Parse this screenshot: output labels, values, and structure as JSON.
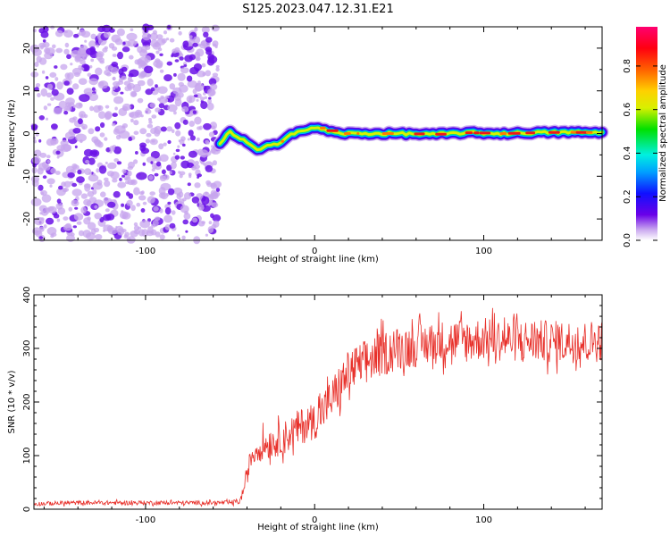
{
  "figure": {
    "title": "S125.2023.047.12.31.E21"
  },
  "chart_data": [
    {
      "type": "heatmap",
      "xlabel": "Height of straight line (km)",
      "ylabel": "Frequency (Hz)",
      "xlim": [
        -166,
        170
      ],
      "ylim": [
        -25,
        25
      ],
      "x_ticks": [
        -100,
        0,
        100
      ],
      "y_ticks": [
        -20,
        -10,
        0,
        10,
        20
      ],
      "noise_region_x": [
        -166,
        -57
      ],
      "signal_track": {
        "x": [
          -56,
          -50,
          -45,
          -40,
          -34,
          -28,
          -22,
          -16,
          -10,
          -4,
          2,
          8,
          16,
          30,
          50,
          70,
          90,
          110,
          130,
          150,
          170
        ],
        "y": [
          -2.5,
          0.5,
          -1.0,
          -2.0,
          -4.0,
          -3.0,
          -2.5,
          -0.5,
          0.5,
          0.8,
          1.5,
          0.5,
          0.0,
          0.0,
          0.0,
          -0.2,
          0.2,
          0.0,
          0.2,
          0.3,
          0.2
        ]
      },
      "colorbar": {
        "label": "Normalized spectral amplitude",
        "ticks": [
          0.0,
          0.2,
          0.4,
          0.6,
          0.8
        ],
        "range": [
          0,
          0.98
        ]
      },
      "grid": false
    },
    {
      "type": "line",
      "xlabel": "Height of straight line (km)",
      "ylabel": "SNR (10 * v/v)",
      "xlim": [
        -166,
        170
      ],
      "ylim": [
        0,
        400
      ],
      "x_ticks": [
        -100,
        0,
        100
      ],
      "y_ticks": [
        0,
        100,
        200,
        300,
        400
      ],
      "series": [
        {
          "color": "#e8302a",
          "x": [
            -166,
            -140,
            -110,
            -80,
            -60,
            -50,
            -44,
            -40,
            -38,
            -35,
            -30,
            -25,
            -20,
            -15,
            -10,
            -5,
            0,
            5,
            10,
            15,
            20,
            30,
            40,
            50,
            60,
            70,
            80,
            90,
            100,
            110,
            120,
            130,
            140,
            150,
            160,
            170
          ],
          "y": [
            10,
            12,
            12,
            12,
            12,
            12,
            15,
            60,
            95,
            110,
            120,
            125,
            130,
            140,
            150,
            160,
            165,
            185,
            205,
            230,
            255,
            275,
            290,
            300,
            305,
            310,
            315,
            315,
            318,
            316,
            315,
            314,
            312,
            313,
            312,
            315
          ],
          "noise_amplitude": [
            4,
            4,
            4,
            4,
            4,
            4,
            6,
            15,
            20,
            25,
            28,
            30,
            30,
            32,
            35,
            35,
            35,
            38,
            40,
            42,
            42,
            42,
            42,
            42,
            40,
            40,
            40,
            42,
            40,
            40,
            40,
            40,
            40,
            40,
            40,
            40
          ]
        }
      ],
      "grid": false
    }
  ]
}
